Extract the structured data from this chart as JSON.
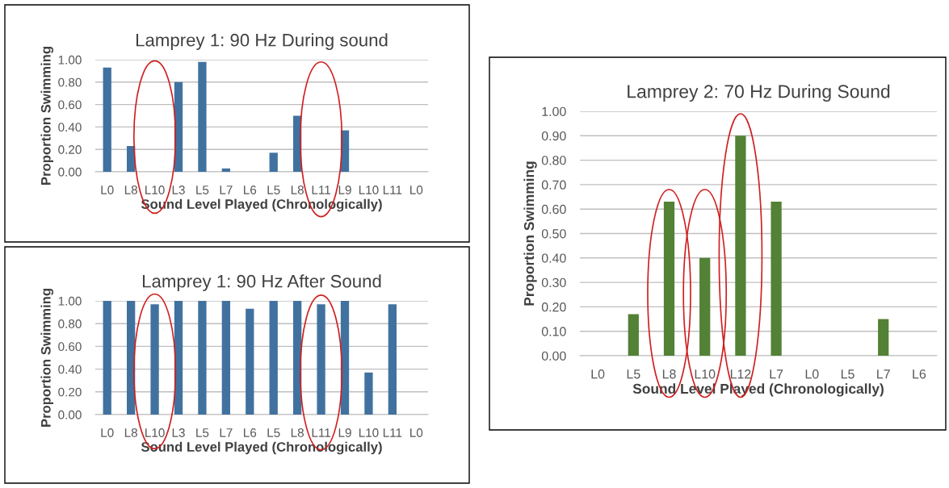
{
  "chart_data": [
    {
      "type": "bar",
      "title": "Lamprey 1: 90 Hz During sound",
      "xlabel": "Sound Level Played (Chronologically)",
      "ylabel": "Proportion Swimming",
      "categories": [
        "L0",
        "L8",
        "L10",
        "L3",
        "L5",
        "L7",
        "L6",
        "L5",
        "L8",
        "L11",
        "L9",
        "L10",
        "L11",
        "L0"
      ],
      "values": [
        0.93,
        0.23,
        0,
        0.8,
        0.98,
        0.03,
        0,
        0.17,
        0.5,
        0,
        0.37,
        0,
        0,
        0
      ],
      "color": "#41729f",
      "ylim": [
        0,
        1
      ],
      "yticks": [
        {
          "value": 0,
          "label": "0.00"
        },
        {
          "value": 0.2,
          "label": "0.20"
        },
        {
          "value": 0.4,
          "label": "0.40"
        },
        {
          "value": 0.6,
          "label": "0.60"
        },
        {
          "value": 0.8,
          "label": "0.80"
        },
        {
          "value": 1,
          "label": "1.00"
        }
      ],
      "grid": "y"
    },
    {
      "type": "bar",
      "title": "Lamprey 1: 90 Hz After Sound",
      "xlabel": "Sound Level Played (Chronologically)",
      "ylabel": "Proportion Swimming",
      "categories": [
        "L0",
        "L8",
        "L10",
        "L3",
        "L5",
        "L7",
        "L6",
        "L5",
        "L8",
        "L11",
        "L9",
        "L10",
        "L11",
        "L0"
      ],
      "values": [
        1,
        1,
        0.97,
        1,
        1,
        1,
        0.93,
        1,
        1,
        0.97,
        1,
        0.37,
        0.97,
        0
      ],
      "color": "#41729f",
      "ylim": [
        0,
        1
      ],
      "yticks": [
        {
          "value": 0,
          "label": "0.00"
        },
        {
          "value": 0.2,
          "label": "0.20"
        },
        {
          "value": 0.4,
          "label": "0.40"
        },
        {
          "value": 0.6,
          "label": "0.60"
        },
        {
          "value": 0.8,
          "label": "0.80"
        },
        {
          "value": 1,
          "label": "1.00"
        }
      ],
      "grid": "y"
    },
    {
      "type": "bar",
      "title": "Lamprey 2: 70 Hz During Sound",
      "xlabel": "Sound Level Played (Chronologically)",
      "ylabel": "Proportion Swimming",
      "categories": [
        "L0",
        "L5",
        "L8",
        "L10",
        "L12",
        "L7",
        "L0",
        "L5",
        "L7",
        "L6"
      ],
      "values": [
        0,
        0.17,
        0.63,
        0.4,
        0.9,
        0.63,
        0,
        0,
        0.15,
        0
      ],
      "color": "#538135",
      "ylim": [
        0,
        1
      ],
      "yticks": [
        {
          "value": 0,
          "label": "0.00"
        },
        {
          "value": 0.1,
          "label": "0.10"
        },
        {
          "value": 0.2,
          "label": "0.20"
        },
        {
          "value": 0.3,
          "label": "0.30"
        },
        {
          "value": 0.4,
          "label": "0.40"
        },
        {
          "value": 0.5,
          "label": "0.50"
        },
        {
          "value": 0.6,
          "label": "0.60"
        },
        {
          "value": 0.7,
          "label": "0.70"
        },
        {
          "value": 0.8,
          "label": "0.80"
        },
        {
          "value": 0.9,
          "label": "0.90"
        },
        {
          "value": 1,
          "label": "1.00"
        }
      ],
      "grid": "y"
    }
  ]
}
